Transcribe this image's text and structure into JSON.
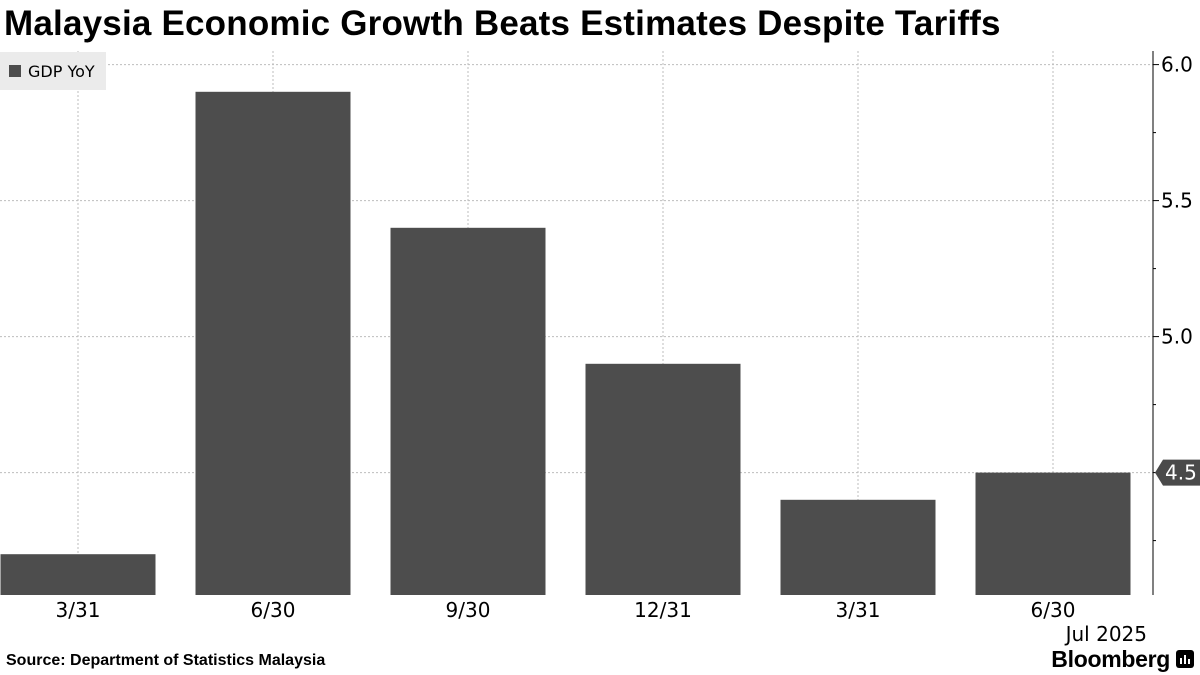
{
  "title": "Malaysia Economic Growth Beats Estimates Despite Tariffs",
  "source": "Source: Department of Statistics Malaysia",
  "brand": "Bloomberg",
  "colors": {
    "bar": "#4d4d4d",
    "grid": "#bdbdbd",
    "legend_bg": "#ebebeb",
    "axis": "#000000"
  },
  "chart_data": {
    "type": "bar",
    "categories": [
      "3/31",
      "6/30",
      "9/30",
      "12/31",
      "3/31",
      "6/30"
    ],
    "series": [
      {
        "name": "GDP YoY",
        "values": [
          4.2,
          5.9,
          5.4,
          4.9,
          4.4,
          4.5
        ]
      }
    ],
    "ylim": [
      4.05,
      6.05
    ],
    "yticks": [
      4.5,
      5.0,
      5.5,
      6.0
    ],
    "ytick_labels": [
      "4.5",
      "5.0",
      "5.5",
      "6.0"
    ],
    "last_value_label": "4.5",
    "x_period_label": "Jul 2025",
    "legend_position": "top-left",
    "grid": true
  }
}
